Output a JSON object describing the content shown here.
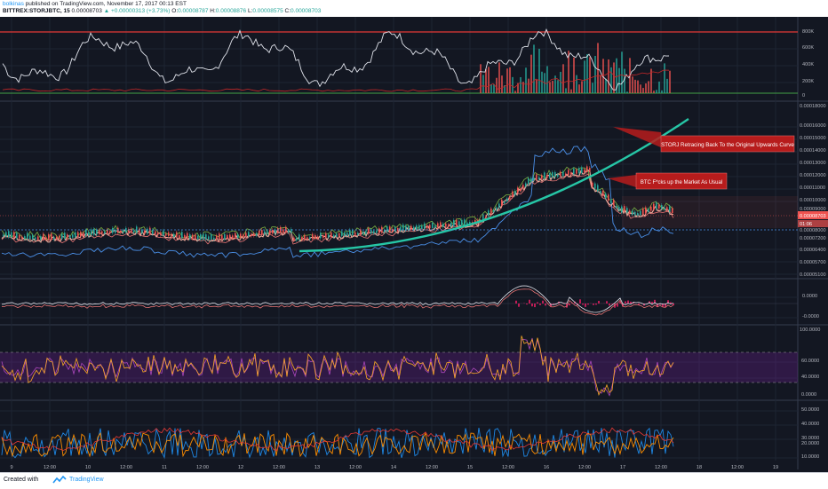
{
  "header": {
    "author": "bolkinas",
    "published_text": "published on TradingView.com, November 17, 2017 00:13 EST",
    "symbol_title": "BITTREX:STORJBTC, 15",
    "price_text": "0.00008703",
    "change_text": "▲ +0.00000313 (+3.73%)",
    "open_label": "O:",
    "open_value": "0.00008787",
    "high_label": "H:",
    "high_value": "0.00008876",
    "low_label": "L:",
    "low_value": "0.00008575",
    "close_label": "C:",
    "close_value": "0.00008703"
  },
  "volume_axis": [
    "800K",
    "600K",
    "400K",
    "200K",
    "0"
  ],
  "price_axis": [
    "0.00018000",
    "0.00016000",
    "0.00015000",
    "0.00014000",
    "0.00013000",
    "0.00012000",
    "0.00011000",
    "0.00010000",
    "0.00009000",
    "0.00008000",
    "0.00007200",
    "0.00006400",
    "0.00005700",
    "0.00005100"
  ],
  "price_tags": {
    "current": "0.00008703",
    "countdown": "01:06"
  },
  "macd_axis": [
    "0.0000",
    "-0.0000"
  ],
  "rsi_axis": [
    "100.0000",
    "60.0000",
    "40.0000",
    "0.0000"
  ],
  "dmi_axis": [
    "50.0000",
    "40.0000",
    "30.0000",
    "20.0000",
    "10.0000"
  ],
  "annotations": {
    "curve_note": "STORJ Retracing Back To the Original Upwards Curve",
    "btc_note": "BTC F*cks up the Market As Usual"
  },
  "time_axis": [
    "9",
    "12:00",
    "10",
    "12:00",
    "11",
    "12:00",
    "12",
    "12:00",
    "13",
    "12:00",
    "14",
    "12:00",
    "15",
    "12:00",
    "16",
    "12:00",
    "17",
    "12:00",
    "18",
    "12:00",
    "19"
  ],
  "footer": {
    "created_with": "Created with",
    "brand": "TradingView"
  },
  "colors": {
    "background": "#131722",
    "up": "#26a69a",
    "down": "#ef5350",
    "accent": "#2196f3",
    "curve": "#26c6a6",
    "annotation_fill": "#b71c1c"
  },
  "icons": {
    "logo": "tradingview-logo-icon"
  }
}
